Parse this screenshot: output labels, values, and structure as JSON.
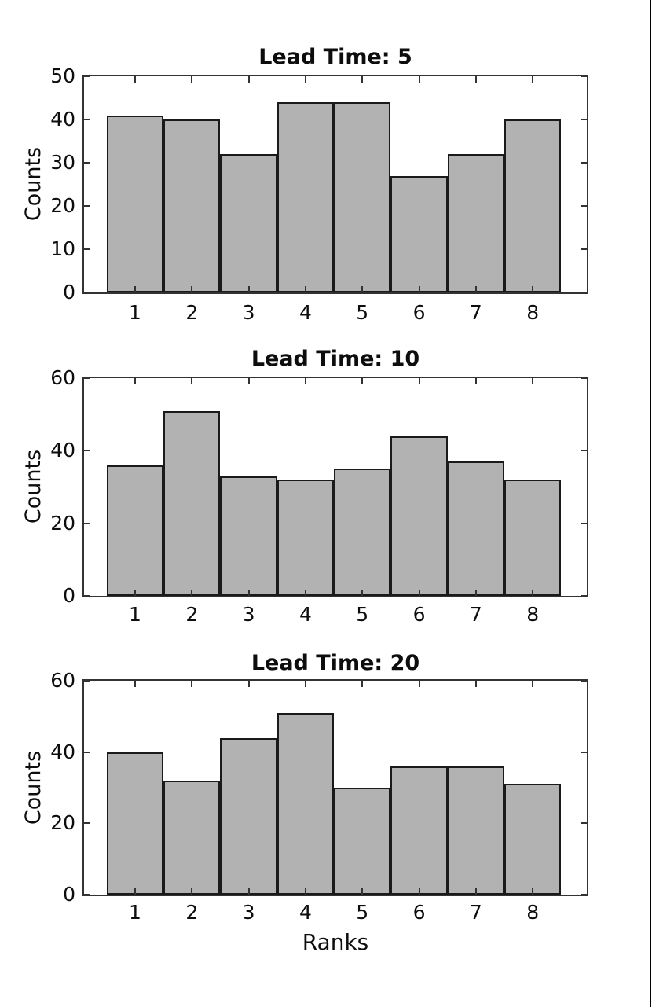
{
  "figure": {
    "ylabel": "Counts",
    "xlabel": "Ranks"
  },
  "chart_data": [
    {
      "type": "bar",
      "title": "Lead Time: 5",
      "categories": [
        "1",
        "2",
        "3",
        "4",
        "5",
        "6",
        "7",
        "8"
      ],
      "values": [
        41,
        40,
        32,
        44,
        44,
        27,
        32,
        40
      ],
      "xlabel": "",
      "ylabel": "Counts",
      "ylim": [
        0,
        50
      ],
      "yticks": [
        0,
        10,
        20,
        30,
        40,
        50
      ],
      "bar_color": "#b2b2b2",
      "bar_edge_color": "#1a1a1a",
      "grid": false,
      "legend": "none"
    },
    {
      "type": "bar",
      "title": "Lead Time: 10",
      "categories": [
        "1",
        "2",
        "3",
        "4",
        "5",
        "6",
        "7",
        "8"
      ],
      "values": [
        36,
        51,
        33,
        32,
        35,
        44,
        37,
        32
      ],
      "xlabel": "",
      "ylabel": "Counts",
      "ylim": [
        0,
        60
      ],
      "yticks": [
        0,
        20,
        40,
        60
      ],
      "bar_color": "#b2b2b2",
      "bar_edge_color": "#1a1a1a",
      "grid": false,
      "legend": "none"
    },
    {
      "type": "bar",
      "title": "Lead Time: 20",
      "categories": [
        "1",
        "2",
        "3",
        "4",
        "5",
        "6",
        "7",
        "8"
      ],
      "values": [
        40,
        32,
        44,
        51,
        30,
        36,
        36,
        31
      ],
      "xlabel": "Ranks",
      "ylabel": "Counts",
      "ylim": [
        0,
        60
      ],
      "yticks": [
        0,
        20,
        40,
        60
      ],
      "bar_color": "#b2b2b2",
      "bar_edge_color": "#1a1a1a",
      "grid": false,
      "legend": "none"
    }
  ]
}
